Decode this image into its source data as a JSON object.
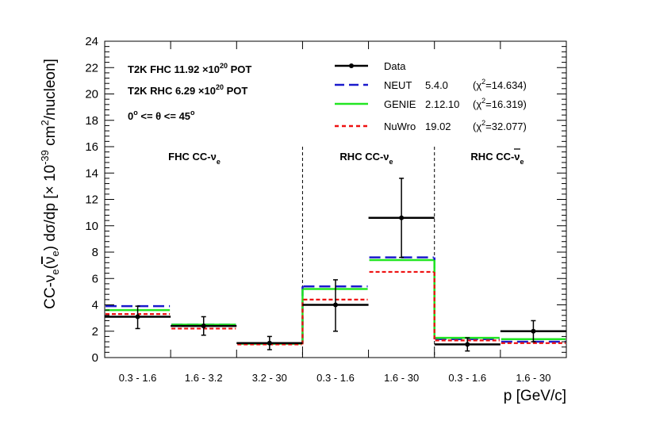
{
  "chart_data": {
    "type": "histogram",
    "ylabel": "CC-νe(ν̄e) dσ/dp [× 10⁻³⁹ cm²/nucleon]",
    "ylabel_parts": {
      "a": "CC-ν",
      "sub1": "e",
      "b": "(",
      "nubar": "ν",
      "sub2": "e",
      "c": ") dσ/dp [× 10",
      "exp": "-39",
      "d": " cm",
      "sq": "2",
      "e": "/nucleon]"
    },
    "xlabel": "p [GeV/c]",
    "ylim": [
      0,
      24
    ],
    "yticks": [
      0,
      2,
      4,
      6,
      8,
      10,
      12,
      14,
      16,
      18,
      20,
      22,
      24
    ],
    "bins": [
      "0.3 - 1.6",
      "1.6 - 3.2",
      "3.2 - 30",
      "0.3 - 1.6",
      "1.6 - 30",
      "0.3 - 1.6",
      "1.6 - 30"
    ],
    "regions": [
      {
        "label": "FHC CC-ν",
        "sub": "e",
        "bar": false,
        "bins": [
          0,
          2
        ]
      },
      {
        "label": "RHC CC-ν",
        "sub": "e",
        "bar": false,
        "bins": [
          3,
          4
        ]
      },
      {
        "label": "RHC CC-ν",
        "sub": "e",
        "bar": true,
        "bins": [
          5,
          6
        ]
      }
    ],
    "info": {
      "line1": {
        "pre": "T2K FHC 11.92 ",
        "times": "×",
        "base": "10",
        "exp": "20",
        "post": " POT"
      },
      "line2": {
        "pre": "T2K RHC  6.29 ",
        "times": "×",
        "base": "10",
        "exp": "20",
        "post": " POT"
      },
      "line3": {
        "pre": "0",
        "deg1": "o",
        "mid": " <= θ <= 45",
        "deg2": "o"
      }
    },
    "series": [
      {
        "name": "Data",
        "key": "data",
        "color": "#000000",
        "values": [
          3.1,
          2.4,
          1.1,
          4.0,
          10.6,
          1.0,
          2.0
        ],
        "err_low": [
          2.2,
          1.7,
          0.6,
          2.0,
          7.6,
          0.5,
          1.2
        ],
        "err_high": [
          3.9,
          3.1,
          1.6,
          5.9,
          13.6,
          1.5,
          2.8
        ]
      },
      {
        "name": "NEUT",
        "version": "5.4.0",
        "chi2_label": "(χ",
        "chi2_sup": "2",
        "chi2_value": "=14.634)",
        "key": "neut",
        "color": "#1a1acc",
        "values": [
          3.9,
          2.5,
          1.05,
          5.4,
          7.6,
          1.4,
          1.2
        ]
      },
      {
        "name": "GENIE",
        "version": "2.12.10",
        "chi2_label": "(χ",
        "chi2_sup": "2",
        "chi2_value": "=16.319)",
        "key": "genie",
        "color": "#22e622",
        "values": [
          3.6,
          2.5,
          1.05,
          5.2,
          7.4,
          1.5,
          1.4
        ]
      },
      {
        "name": "NuWro",
        "version": "19.02",
        "chi2_label": "(χ",
        "chi2_sup": "2",
        "chi2_value": "=32.077)",
        "key": "nuwro",
        "color": "#ee1111",
        "values": [
          3.3,
          2.2,
          1.0,
          4.4,
          6.5,
          1.3,
          1.1
        ]
      }
    ]
  }
}
